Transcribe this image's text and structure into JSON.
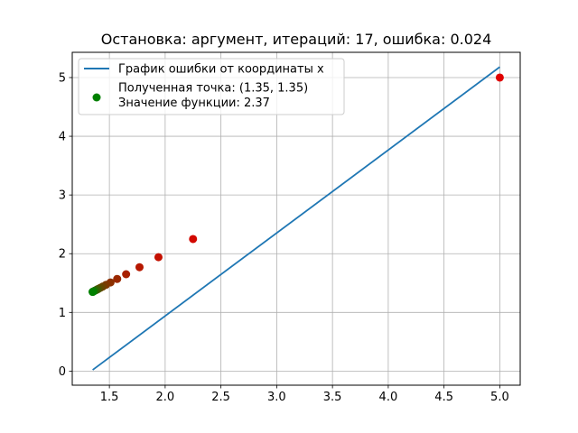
{
  "chart_data": {
    "type": "line",
    "title": "Остановка: аргумент, итераций: 17, ошибка: 0.024",
    "xlabel": "",
    "ylabel": "",
    "xlim": [
      1.167,
      5.183
    ],
    "ylim": [
      -0.24,
      5.43
    ],
    "x_ticks": [
      "1.5",
      "2.0",
      "2.5",
      "3.0",
      "3.5",
      "4.0",
      "4.5",
      "5.0"
    ],
    "y_ticks": [
      "0",
      "1",
      "2",
      "3",
      "4",
      "5"
    ],
    "grid": true,
    "legend_position": "top-left",
    "series": [
      {
        "name": "График ошибки от координаты x",
        "type": "line",
        "color": "#1f77b4",
        "x": [
          1.35,
          5.0
        ],
        "y": [
          0.02,
          5.18
        ]
      }
    ],
    "iteration_points": {
      "x": [
        5.0,
        2.25,
        1.94,
        1.77,
        1.65,
        1.57,
        1.51,
        1.47,
        1.44,
        1.42,
        1.4,
        1.39,
        1.38,
        1.37,
        1.36,
        1.355,
        1.35
      ],
      "y": [
        5.0,
        2.25,
        1.94,
        1.77,
        1.65,
        1.57,
        1.51,
        1.47,
        1.44,
        1.42,
        1.4,
        1.39,
        1.38,
        1.37,
        1.36,
        1.355,
        1.35
      ],
      "color_start": "#e00000",
      "color_end": "#008000"
    },
    "result_point": {
      "legend_lines": [
        "Полученная точка: (1.35, 1.35)",
        "Значение функции: 2.37"
      ],
      "x": 1.35,
      "y": 1.35,
      "color": "#008000"
    }
  }
}
